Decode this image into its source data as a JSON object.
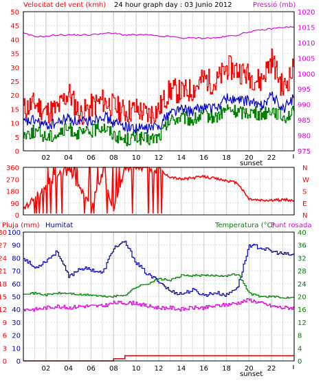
{
  "colors": {
    "frame": "#000000",
    "grid": "#d8d8d8",
    "wind_gust": "#ff0000",
    "wind_avg": "#0000c8",
    "wind_min": "#008000",
    "pressure": "#e000e0",
    "direction": "#ff0000",
    "rain": "#c80000",
    "humidity": "#0000b0",
    "temperature": "#008000",
    "dewpoint": "#e000e0",
    "left_axis_text": "#ff0000",
    "right_axis_text": "#e000e0",
    "bottom_axis_text": "#000000"
  },
  "chart_data": [
    {
      "type": "line",
      "title": "24 hour graph day : 03 Junio 2012",
      "ylabel_left": "Velocitat del vent (kmh)",
      "ylabel_right": "Pressió (mb)",
      "x_ticks": [
        "02",
        "04",
        "06",
        "08",
        "10",
        "12",
        "14",
        "16",
        "18",
        "20",
        "22"
      ],
      "x_annotation": "sunset",
      "y_left_ticks": [
        "50",
        "45",
        "40",
        "35",
        "30",
        "25",
        "20",
        "15",
        "10",
        "5",
        "0"
      ],
      "y_right_ticks": [
        "1020",
        "1015",
        "1010",
        "1005",
        "1000",
        "995",
        "990",
        "985",
        "980",
        "975"
      ],
      "ylim_left": [
        0,
        50
      ],
      "ylim_right": [
        975,
        1020
      ],
      "x_hours": [
        0,
        1,
        2,
        3,
        4,
        5,
        6,
        7,
        8,
        9,
        10,
        11,
        12,
        13,
        14,
        15,
        16,
        17,
        18,
        19,
        20,
        21,
        22,
        23,
        24
      ],
      "series": [
        {
          "values": [
            15,
            17,
            14,
            15,
            21,
            13,
            16,
            18,
            16,
            14,
            15,
            13,
            15,
            22,
            21,
            22,
            26,
            24,
            30,
            29,
            27,
            25,
            33,
            22,
            30
          ]
        },
        {
          "values": [
            10,
            11,
            9,
            10,
            12,
            10,
            11,
            13,
            10,
            9,
            8,
            8,
            9,
            14,
            15,
            14,
            16,
            15,
            19,
            18,
            18,
            16,
            20,
            15,
            19
          ]
        },
        {
          "values": [
            6,
            7,
            5,
            6,
            8,
            6,
            7,
            9,
            6,
            4,
            5,
            4,
            5,
            11,
            12,
            11,
            13,
            12,
            15,
            14,
            14,
            13,
            15,
            12,
            14
          ]
        },
        {
          "values": [
            1013,
            1012,
            1012,
            1012.5,
            1012.5,
            1012.5,
            1012.5,
            1013,
            1013,
            1012.5,
            1012.5,
            1012.5,
            1012,
            1012,
            1011.5,
            1011.5,
            1011.5,
            1011.5,
            1012,
            1012.5,
            1013.5,
            1014,
            1014.5,
            1015,
            1015
          ]
        }
      ]
    },
    {
      "type": "line",
      "y_left_ticks": [
        "360",
        "270",
        "180",
        "90",
        "0"
      ],
      "y_right_ticks": [
        "N",
        "W",
        "S",
        "E",
        "N"
      ],
      "ylim": [
        0,
        360
      ],
      "x_hours": [
        0,
        1,
        2,
        3,
        4,
        5,
        6,
        7,
        8,
        9,
        10,
        11,
        12,
        13,
        14,
        15,
        16,
        17,
        18,
        19,
        20,
        21,
        22,
        23,
        24
      ],
      "series": [
        {
          "values": [
            40,
            120,
            230,
            300,
            330,
            200,
            60,
            310,
            40,
            360,
            360,
            360,
            330,
            290,
            270,
            280,
            290,
            275,
            260,
            240,
            120,
            110,
            110,
            115,
            110
          ]
        }
      ]
    },
    {
      "type": "line",
      "ylabel_left": "Pluja (mm)",
      "ylabel_left2": "Humitat",
      "ylabel_right": "Temperatura (°C)",
      "ylabel_right2": "Punt rosada",
      "x_ticks": [
        "02",
        "04",
        "06",
        "08",
        "10",
        "12",
        "14",
        "16",
        "18",
        "20",
        "22"
      ],
      "x_annotation": "sunset",
      "y_rain_ticks": [
        "30",
        "27",
        "24",
        "21",
        "18",
        "15",
        "12",
        "9",
        "6",
        "3",
        "0"
      ],
      "y_humidity_ticks": [
        "100",
        "90",
        "80",
        "70",
        "60",
        "50",
        "40",
        "30",
        "20",
        "10",
        "0"
      ],
      "y_right_ticks": [
        "40",
        "36",
        "32",
        "28",
        "24",
        "20",
        "16",
        "12",
        "8",
        "4",
        "0"
      ],
      "ylim_rain": [
        0,
        30
      ],
      "ylim_humidity": [
        0,
        100
      ],
      "ylim_right": [
        0,
        40
      ],
      "x_hours": [
        0,
        1,
        2,
        3,
        4,
        5,
        6,
        7,
        8,
        9,
        10,
        11,
        12,
        13,
        14,
        15,
        16,
        17,
        18,
        19,
        20,
        21,
        22,
        23,
        24
      ],
      "series": [
        {
          "values": [
            0,
            0,
            0,
            0,
            0,
            0,
            0,
            0,
            0.5,
            1.2,
            1.2,
            1.2,
            1.2,
            1.2,
            1.2,
            1.2,
            1.2,
            1.2,
            1.2,
            1.2,
            1.2,
            1.2,
            1.2,
            1.2,
            1.2
          ]
        },
        {
          "values": [
            80,
            72,
            78,
            85,
            65,
            72,
            71,
            68,
            88,
            92,
            76,
            67,
            62,
            54,
            52,
            55,
            51,
            53,
            51,
            58,
            90,
            88,
            85,
            83,
            82
          ]
        },
        {
          "values": [
            21,
            21,
            20.5,
            21,
            21,
            20.5,
            20.5,
            20,
            20,
            20.5,
            23,
            24,
            25.5,
            25,
            26.5,
            26.5,
            26.5,
            26.5,
            26.5,
            27,
            21,
            20,
            20,
            19.5,
            20
          ]
        },
        {
          "values": [
            16,
            16,
            16.5,
            17,
            16.5,
            17,
            17,
            17,
            18,
            18,
            18,
            17,
            16.5,
            16.5,
            16,
            16.5,
            16.5,
            17,
            17.5,
            18,
            19,
            18,
            17,
            16.5,
            16.5
          ]
        }
      ]
    }
  ]
}
